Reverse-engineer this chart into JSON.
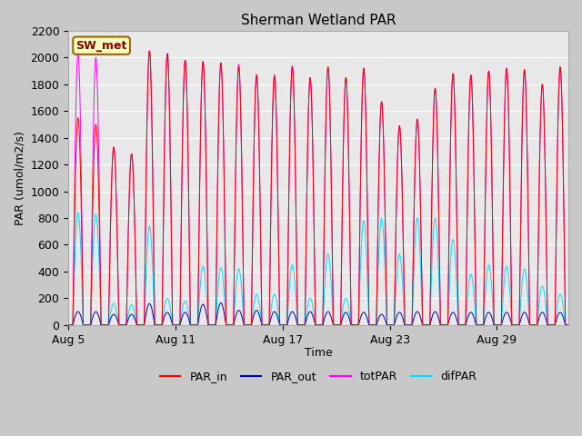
{
  "title": "Sherman Wetland PAR",
  "ylabel": "PAR (umol/m2/s)",
  "xlabel": "Time",
  "ylim": [
    0,
    2200
  ],
  "yticks": [
    0,
    200,
    400,
    600,
    800,
    1000,
    1200,
    1400,
    1600,
    1800,
    2000,
    2200
  ],
  "xtick_labels": [
    "Aug 5",
    "Aug 11",
    "Aug 17",
    "Aug 23",
    "Aug 29"
  ],
  "xtick_pos": [
    0,
    6,
    12,
    18,
    24
  ],
  "legend_entries": [
    "PAR_in",
    "PAR_out",
    "totPAR",
    "difPAR"
  ],
  "line_colors": [
    "#ff0000",
    "#0000bb",
    "#ff00ff",
    "#00ddff"
  ],
  "station_label": "SW_met",
  "fig_bg_color": "#c8c8c8",
  "plot_bg_color": "#e8e8e8",
  "n_days": 28,
  "samples_per_day": 96,
  "day_peaks_tot": [
    2040,
    2000,
    1330,
    1280,
    2050,
    2030,
    1980,
    1970,
    1960,
    1950,
    1870,
    1870,
    1940,
    1850,
    1930,
    1850,
    1920,
    1670,
    1490,
    1540,
    1770,
    1880,
    1870,
    1900,
    1920,
    1910,
    1800,
    1930
  ],
  "day_peaks_in": [
    1550,
    1500,
    1330,
    1280,
    2050,
    2030,
    1980,
    1970,
    1960,
    1930,
    1870,
    1860,
    1930,
    1850,
    1930,
    1850,
    1920,
    1670,
    1490,
    1540,
    1770,
    1880,
    1870,
    1900,
    1920,
    1910,
    1800,
    1930
  ],
  "day_peaks_dif": [
    840,
    830,
    160,
    150,
    740,
    200,
    180,
    440,
    430,
    420,
    230,
    230,
    450,
    200,
    530,
    200,
    780,
    800,
    530,
    800,
    800,
    640,
    380,
    450,
    440,
    420,
    290,
    230
  ],
  "day_peaks_out": [
    100,
    100,
    80,
    80,
    160,
    95,
    95,
    155,
    165,
    110,
    110,
    100,
    100,
    100,
    100,
    95,
    95,
    80,
    95,
    100,
    100,
    95,
    95,
    95,
    95,
    95,
    95,
    95
  ]
}
